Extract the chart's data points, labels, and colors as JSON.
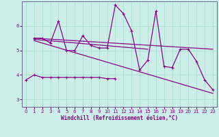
{
  "background_color": "#cceee8",
  "grid_color": "#aaddcc",
  "line_color": "#880088",
  "spine_color": "#666688",
  "xlim": [
    -0.5,
    23.5
  ],
  "ylim": [
    2.7,
    7.0
  ],
  "xlabel": "Windchill (Refroidissement éolien,°C)",
  "xticks": [
    0,
    1,
    2,
    3,
    4,
    5,
    6,
    7,
    8,
    9,
    10,
    11,
    12,
    13,
    14,
    15,
    16,
    17,
    18,
    19,
    20,
    21,
    22,
    23
  ],
  "yticks": [
    3,
    4,
    5,
    6
  ],
  "series1_x": [
    0,
    1,
    2,
    3,
    4,
    5,
    6,
    7,
    8,
    9,
    10,
    11
  ],
  "series1_y": [
    3.8,
    4.0,
    3.9,
    3.9,
    3.9,
    3.9,
    3.9,
    3.9,
    3.9,
    3.9,
    3.85,
    3.85
  ],
  "series2_x": [
    1,
    2,
    3,
    4,
    5,
    6,
    7,
    8,
    9,
    10,
    11,
    12,
    13,
    14,
    15,
    16,
    17,
    18,
    19,
    20,
    21,
    22,
    23
  ],
  "series2_y": [
    5.5,
    5.5,
    5.3,
    6.2,
    5.0,
    5.0,
    5.6,
    5.2,
    5.1,
    5.1,
    6.85,
    6.5,
    5.8,
    4.2,
    4.6,
    6.6,
    4.35,
    4.3,
    5.05,
    5.05,
    4.55,
    3.8,
    3.4
  ],
  "trend1_x": [
    1,
    23
  ],
  "trend1_y": [
    5.5,
    5.05
  ],
  "trend2_x": [
    1,
    23
  ],
  "trend2_y": [
    5.4,
    3.25
  ],
  "trend3_x": [
    1,
    15
  ],
  "trend3_y": [
    5.45,
    5.05
  ]
}
